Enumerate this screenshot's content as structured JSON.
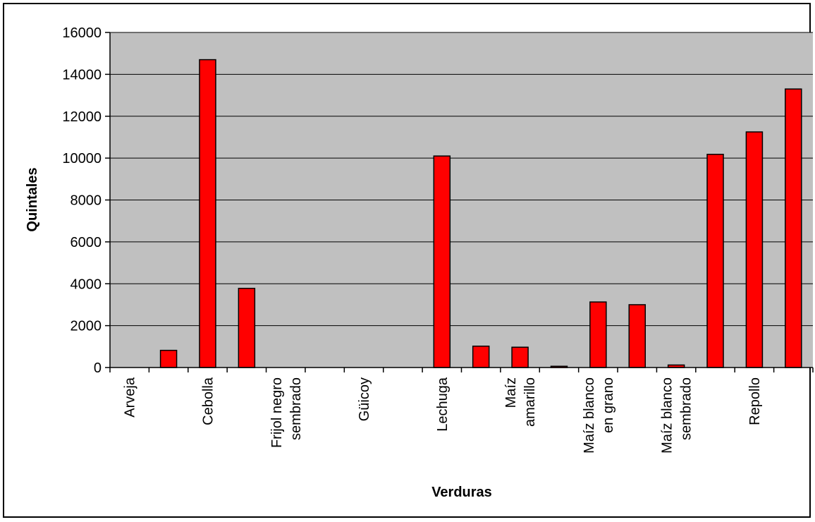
{
  "chart_data": {
    "type": "bar",
    "title": "",
    "xlabel": "Verduras",
    "ylabel": "Quintales",
    "ylim": [
      0,
      16000
    ],
    "yticks": [
      0,
      2000,
      4000,
      6000,
      8000,
      10000,
      12000,
      14000,
      16000
    ],
    "grid": true,
    "legend": "none",
    "colors": {
      "bar": "#ff0000",
      "plot_bg": "#c0c0c0",
      "edge": "#000000"
    },
    "categories": [
      "Arveja",
      "",
      "Cebolla",
      "",
      "Frijol negro sembrado",
      "",
      "Güicoy",
      "",
      "Lechuga",
      "",
      "Maíz amarillo",
      "",
      "Maíz blanco en grano",
      "",
      "Maíz blanco sembrado",
      "",
      "Repollo",
      ""
    ],
    "category_lines": [
      [
        "Arveja"
      ],
      [],
      [
        "Cebolla"
      ],
      [],
      [
        "Frijol negro",
        "sembrado"
      ],
      [],
      [
        "Güicoy"
      ],
      [],
      [
        "Lechuga"
      ],
      [],
      [
        "Maíz",
        "amarillo"
      ],
      [],
      [
        "Maíz blanco",
        "en grano"
      ],
      [],
      [
        "Maíz blanco",
        "sembrado"
      ],
      [],
      [
        "Repollo"
      ],
      []
    ],
    "values": [
      0,
      820,
      14700,
      3780,
      0,
      0,
      0,
      0,
      10100,
      1020,
      970,
      60,
      3130,
      3000,
      120,
      10180,
      11250,
      13300
    ]
  }
}
